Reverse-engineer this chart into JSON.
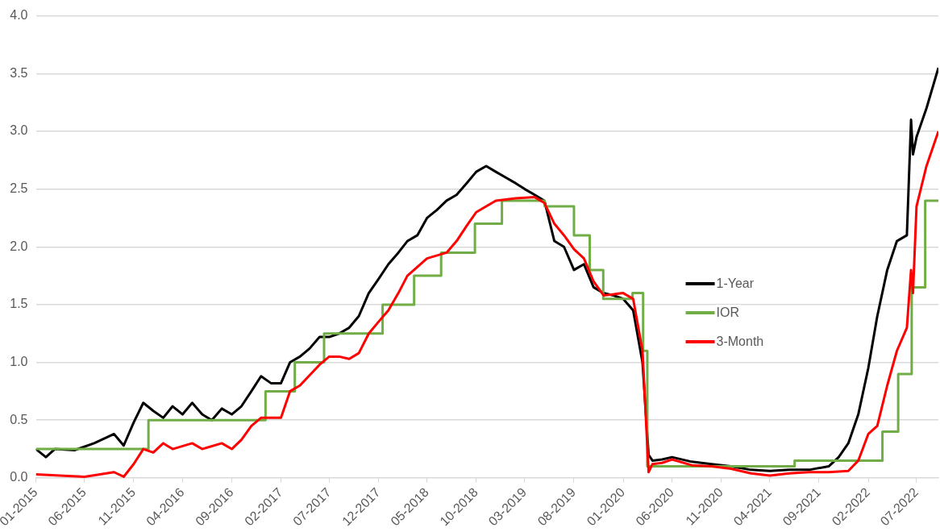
{
  "chart_data": {
    "type": "line",
    "xlim": [
      "2015-01",
      "2022-09-07"
    ],
    "xticks": [
      {
        "value": "2015-01",
        "label": "01-2015"
      },
      {
        "value": "2015-06",
        "label": "06-2015"
      },
      {
        "value": "2015-11",
        "label": "11-2015"
      },
      {
        "value": "2016-04",
        "label": "04-2016"
      },
      {
        "value": "2016-09",
        "label": "09-2016"
      },
      {
        "value": "2017-02",
        "label": "02-2017"
      },
      {
        "value": "2017-07",
        "label": "07-2017"
      },
      {
        "value": "2017-12",
        "label": "12-2017"
      },
      {
        "value": "2018-05",
        "label": "05-2018"
      },
      {
        "value": "2018-10",
        "label": "10-2018"
      },
      {
        "value": "2019-03",
        "label": "03-2019"
      },
      {
        "value": "2019-08",
        "label": "08-2019"
      },
      {
        "value": "2020-01",
        "label": "01-2020"
      },
      {
        "value": "2020-06",
        "label": "06-2020"
      },
      {
        "value": "2020-11",
        "label": "11-2020"
      },
      {
        "value": "2021-04",
        "label": "04-2021"
      },
      {
        "value": "2021-09",
        "label": "09-2021"
      },
      {
        "value": "2022-02",
        "label": "02-2022"
      },
      {
        "value": "2022-07",
        "label": "07-2022"
      }
    ],
    "ylim": [
      0,
      4
    ],
    "yticks": [
      {
        "value": 0,
        "label": "0.0"
      },
      0.5,
      {
        "value": 1,
        "label": "1.0"
      },
      1.5,
      {
        "value": 2,
        "label": "2.0"
      },
      2.5,
      {
        "value": 3,
        "label": "3.0"
      },
      3.5,
      {
        "value": 4,
        "label": "4.0"
      }
    ],
    "grid": "y",
    "legend": "right",
    "marker": "none",
    "line_style": "solid",
    "series": [
      {
        "name": "1-Year",
        "color": "#000000",
        "x": [
          "2015-01",
          "2015-02",
          "2015-03",
          "2015-05",
          "2015-07",
          "2015-09",
          "2015-10",
          "2015-11",
          "2015-12",
          "2016-01",
          "2016-02",
          "2016-03",
          "2016-04",
          "2016-05",
          "2016-06",
          "2016-07",
          "2016-08",
          "2016-09",
          "2016-10",
          "2016-11",
          "2016-12",
          "2017-01",
          "2017-02",
          "2017-03",
          "2017-04",
          "2017-05",
          "2017-06",
          "2017-07",
          "2017-08",
          "2017-09",
          "2017-10",
          "2017-11",
          "2017-12",
          "2018-01",
          "2018-02",
          "2018-03",
          "2018-04",
          "2018-05",
          "2018-06",
          "2018-07",
          "2018-08",
          "2018-09",
          "2018-10",
          "2018-11",
          "2018-12",
          "2019-01",
          "2019-02",
          "2019-03",
          "2019-04",
          "2019-05",
          "2019-06",
          "2019-07",
          "2019-08",
          "2019-09",
          "2019-10",
          "2019-11",
          "2019-12",
          "2020-01",
          "2020-02",
          "2020-03-01",
          "2020-03-20",
          "2020-04",
          "2020-05",
          "2020-06",
          "2020-08",
          "2020-10",
          "2020-12",
          "2021-02",
          "2021-04",
          "2021-06",
          "2021-08",
          "2021-10",
          "2021-11",
          "2021-12",
          "2022-01",
          "2022-02",
          "2022-03",
          "2022-04",
          "2022-05",
          "2022-06-01",
          "2022-06-14",
          "2022-06-20",
          "2022-07",
          "2022-08",
          "2022-09-07"
        ],
        "values": [
          0.25,
          0.18,
          0.25,
          0.24,
          0.3,
          0.38,
          0.28,
          0.48,
          0.65,
          0.58,
          0.52,
          0.62,
          0.55,
          0.65,
          0.55,
          0.5,
          0.6,
          0.55,
          0.62,
          0.75,
          0.88,
          0.82,
          0.82,
          1.0,
          1.05,
          1.12,
          1.22,
          1.22,
          1.25,
          1.3,
          1.4,
          1.6,
          1.72,
          1.85,
          1.95,
          2.05,
          2.1,
          2.25,
          2.32,
          2.4,
          2.45,
          2.55,
          2.65,
          2.7,
          2.65,
          2.6,
          2.55,
          2.5,
          2.45,
          2.4,
          2.05,
          2.0,
          1.8,
          1.85,
          1.65,
          1.6,
          1.58,
          1.55,
          1.45,
          1.0,
          0.2,
          0.15,
          0.16,
          0.18,
          0.14,
          0.12,
          0.1,
          0.07,
          0.06,
          0.07,
          0.07,
          0.1,
          0.18,
          0.3,
          0.55,
          0.95,
          1.4,
          1.8,
          2.05,
          2.1,
          3.1,
          2.8,
          2.95,
          3.2,
          3.55
        ]
      },
      {
        "name": "IOR",
        "color": "#70ad47",
        "type": "step",
        "x": [
          "2015-01",
          "2015-12-17",
          "2016-12-15",
          "2017-03-16",
          "2017-06-15",
          "2017-12-14",
          "2018-03-22",
          "2018-06-14",
          "2018-09-27",
          "2018-12-20",
          "2019-05-02",
          "2019-08-01",
          "2019-09-19",
          "2019-10-31",
          "2020-01-30",
          "2020-03-03",
          "2020-03-16",
          "2021-06-17",
          "2022-03-17",
          "2022-05-05",
          "2022-06-16",
          "2022-07-28",
          "2022-09-07"
        ],
        "values": [
          0.25,
          0.5,
          0.75,
          1.0,
          1.25,
          1.5,
          1.75,
          1.95,
          2.2,
          2.4,
          2.35,
          2.1,
          1.8,
          1.55,
          1.6,
          1.1,
          0.1,
          0.15,
          0.4,
          0.9,
          1.65,
          2.4,
          2.4
        ]
      },
      {
        "name": "3-Month",
        "color": "#ff0000",
        "x": [
          "2015-01",
          "2015-06",
          "2015-09",
          "2015-10",
          "2015-11",
          "2015-12",
          "2016-01",
          "2016-02",
          "2016-03",
          "2016-05",
          "2016-06",
          "2016-08",
          "2016-09",
          "2016-10",
          "2016-11",
          "2016-12",
          "2017-02",
          "2017-03",
          "2017-04",
          "2017-06",
          "2017-07",
          "2017-08",
          "2017-09",
          "2017-10",
          "2017-11",
          "2017-12",
          "2018-01",
          "2018-02",
          "2018-03",
          "2018-05",
          "2018-07",
          "2018-08",
          "2018-09",
          "2018-10",
          "2018-12",
          "2019-02",
          "2019-04",
          "2019-05",
          "2019-06",
          "2019-07",
          "2019-08",
          "2019-09",
          "2019-10",
          "2019-11",
          "2020-01",
          "2020-02",
          "2020-03-01",
          "2020-03-20",
          "2020-04",
          "2020-05",
          "2020-06",
          "2020-08",
          "2020-10",
          "2020-12",
          "2021-02",
          "2021-04",
          "2021-06",
          "2021-08",
          "2021-10",
          "2021-12",
          "2022-01",
          "2022-02",
          "2022-03",
          "2022-04",
          "2022-05",
          "2022-06-01",
          "2022-06-14",
          "2022-06-20",
          "2022-07",
          "2022-08",
          "2022-09-07"
        ],
        "values": [
          0.03,
          0.01,
          0.05,
          0.01,
          0.12,
          0.25,
          0.22,
          0.3,
          0.25,
          0.3,
          0.25,
          0.3,
          0.25,
          0.33,
          0.45,
          0.52,
          0.52,
          0.75,
          0.8,
          0.98,
          1.05,
          1.05,
          1.03,
          1.08,
          1.25,
          1.35,
          1.45,
          1.6,
          1.75,
          1.9,
          1.95,
          2.05,
          2.18,
          2.3,
          2.4,
          2.42,
          2.43,
          2.38,
          2.2,
          2.1,
          1.98,
          1.9,
          1.7,
          1.58,
          1.6,
          1.55,
          1.1,
          0.05,
          0.12,
          0.13,
          0.16,
          0.11,
          0.1,
          0.08,
          0.04,
          0.02,
          0.04,
          0.05,
          0.05,
          0.06,
          0.15,
          0.38,
          0.45,
          0.8,
          1.1,
          1.3,
          1.8,
          1.6,
          2.35,
          2.7,
          3.0
        ]
      }
    ]
  }
}
